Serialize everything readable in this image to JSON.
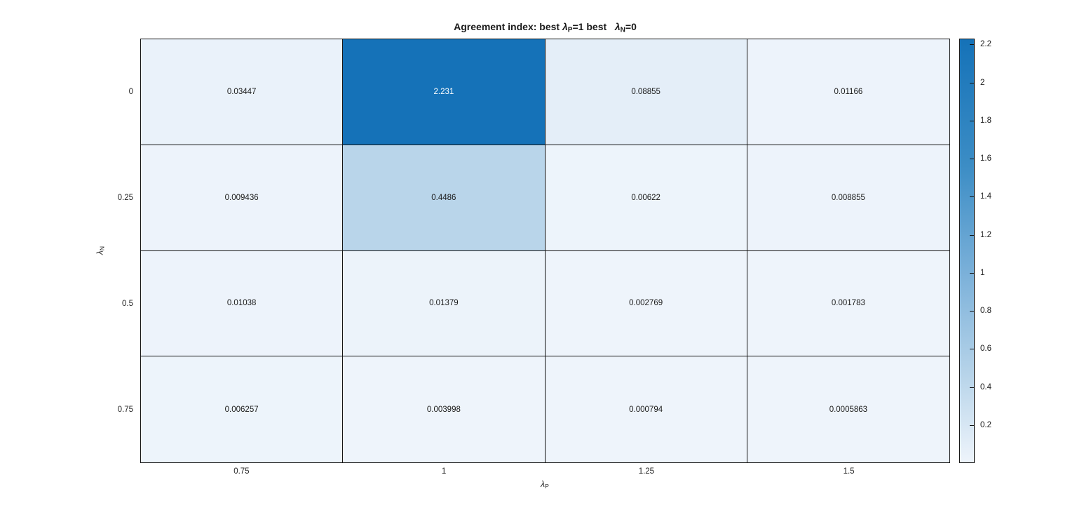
{
  "chart_data": {
    "type": "heatmap",
    "title": {
      "part1": "Agreement index: best ",
      "lambda1": "λ",
      "sub1": "P",
      "part2": "=1 best   ",
      "lambda2": "λ",
      "sub2": "N",
      "part3": "=0"
    },
    "xlabel": {
      "lambda": "λ",
      "sub": "P"
    },
    "ylabel": {
      "lambda": "λ",
      "sub": "N"
    },
    "x_ticks": [
      "0.75",
      "1",
      "1.25",
      "1.5"
    ],
    "y_ticks": [
      "0",
      "0.25",
      "0.5",
      "0.75"
    ],
    "x_values": [
      0.75,
      1,
      1.25,
      1.5
    ],
    "y_values": [
      0,
      0.25,
      0.5,
      0.75
    ],
    "values": [
      [
        0.03447,
        2.231,
        0.08855,
        0.01166
      ],
      [
        0.009436,
        0.4486,
        0.00622,
        0.008855
      ],
      [
        0.01038,
        0.01379,
        0.002769,
        0.001783
      ],
      [
        0.006257,
        0.003998,
        0.000794,
        0.0005863
      ]
    ],
    "cell_labels": [
      [
        "0.03447",
        "2.231",
        "0.08855",
        "0.01166"
      ],
      [
        "0.009436",
        "0.4486",
        "0.00622",
        "0.008855"
      ],
      [
        "0.01038",
        "0.01379",
        "0.002769",
        "0.001783"
      ],
      [
        "0.006257",
        "0.003998",
        "0.000794",
        "0.0005863"
      ]
    ],
    "color_range": [
      0.0005863,
      2.231
    ],
    "colormap_stops": [
      [
        0.0,
        "#eef4fb"
      ],
      [
        0.2,
        "#b9d5ea"
      ],
      [
        0.45,
        "#7ab0d9"
      ],
      [
        0.7,
        "#3c8dc5"
      ],
      [
        1.0,
        "#1572b8"
      ]
    ],
    "cell_text_dark": "#1a1a1a",
    "cell_text_light": "#ffffff",
    "colorbar": {
      "tick_values": [
        0.2,
        0.4,
        0.6,
        0.8,
        1,
        1.2,
        1.4,
        1.6,
        1.8,
        2,
        2.2
      ],
      "tick_labels": [
        "0.2",
        "0.4",
        "0.6",
        "0.8",
        "1",
        "1.2",
        "1.4",
        "1.6",
        "1.8",
        "2",
        "2.2"
      ]
    },
    "layout": {
      "grid": "off",
      "legend": "none",
      "colorbar_position": "right"
    }
  }
}
